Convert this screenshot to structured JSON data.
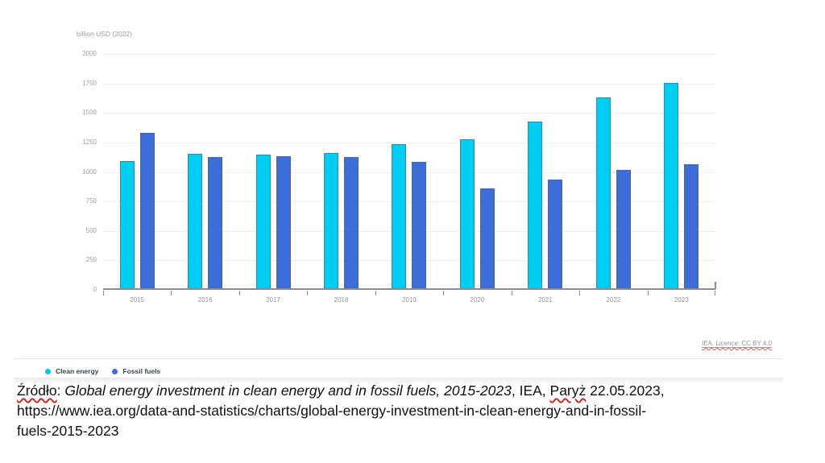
{
  "chart_data": {
    "type": "bar",
    "title": "Global energy investment in clean energy and in fossil fuels, 2015-2023",
    "ylabel": "billion USD (2022)",
    "xlabel": "",
    "categories": [
      "2015",
      "2016",
      "2017",
      "2018",
      "2019",
      "2020",
      "2021",
      "2022",
      "2023"
    ],
    "series": [
      {
        "name": "Clean energy",
        "color": "#00cdf2",
        "values": [
          1080,
          1140,
          1135,
          1145,
          1225,
          1265,
          1415,
          1620,
          1740
        ]
      },
      {
        "name": "Fossil fuels",
        "color": "#3d6dd9",
        "values": [
          1320,
          1110,
          1120,
          1110,
          1075,
          845,
          920,
          1005,
          1050
        ]
      }
    ],
    "ylim": [
      0,
      2000
    ],
    "yticks": [
      0,
      250,
      500,
      750,
      1000,
      1250,
      1500,
      1750,
      2000
    ],
    "grid": true,
    "legend_position": "bottom-left"
  },
  "widget": {
    "licence_label": "IEA. Licence: CC BY 4.0"
  },
  "source": {
    "word1": "Źródło",
    "sep1": ": ",
    "title_italic": "Global energy investment in clean energy and in fossil fuels, 2015-2023",
    "sep2": ", IEA, ",
    "word2": "Paryż",
    "sep3": " 22.05.2023,",
    "url_line1": "https://www.iea.org/data-and-statistics/charts/global-energy-investment-in-clean-energy-and-in-fossil-",
    "url_line2": "fuels-2015-2023"
  }
}
